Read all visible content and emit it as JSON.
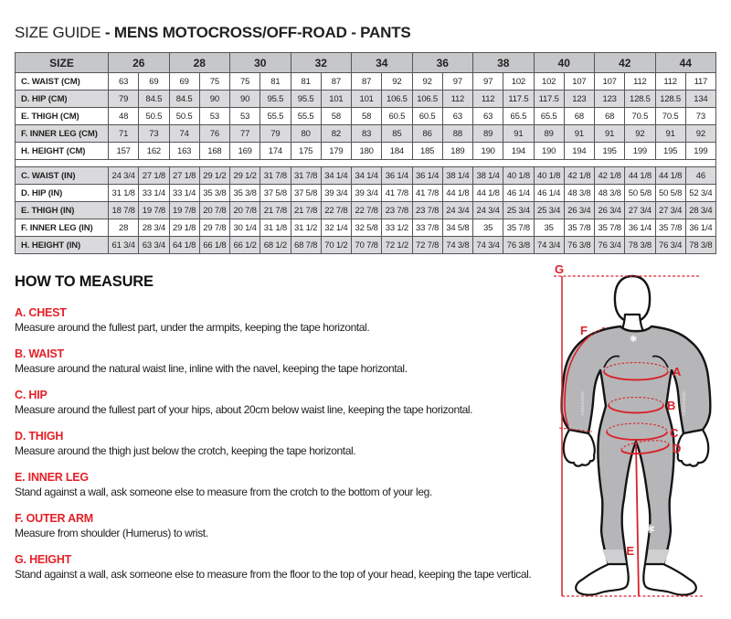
{
  "header": {
    "title_prefix": "SIZE GUIDE",
    "title_bold": " - MENS MOTOCROSS/OFF-ROAD - PANTS"
  },
  "size_table": {
    "corner_label": "SIZE",
    "sizes": [
      "26",
      "28",
      "30",
      "32",
      "34",
      "36",
      "38",
      "40",
      "42",
      "44"
    ],
    "separator_after": 5,
    "rows": [
      {
        "label": "C. WAIST (CM)",
        "values": [
          "63",
          "69",
          "69",
          "75",
          "75",
          "81",
          "81",
          "87",
          "87",
          "92",
          "92",
          "97",
          "97",
          "102",
          "102",
          "107",
          "107",
          "112",
          "112",
          "117"
        ]
      },
      {
        "label": "D. HIP (CM)",
        "values": [
          "79",
          "84.5",
          "84.5",
          "90",
          "90",
          "95.5",
          "95.5",
          "101",
          "101",
          "106.5",
          "106.5",
          "112",
          "112",
          "117.5",
          "117.5",
          "123",
          "123",
          "128.5",
          "128.5",
          "134"
        ]
      },
      {
        "label": "E. THIGH (CM)",
        "values": [
          "48",
          "50.5",
          "50.5",
          "53",
          "53",
          "55.5",
          "55.5",
          "58",
          "58",
          "60.5",
          "60.5",
          "63",
          "63",
          "65.5",
          "65.5",
          "68",
          "68",
          "70.5",
          "70.5",
          "73"
        ]
      },
      {
        "label": "F. INNER LEG (CM)",
        "values": [
          "71",
          "73",
          "74",
          "76",
          "77",
          "79",
          "80",
          "82",
          "83",
          "85",
          "86",
          "88",
          "89",
          "91",
          "89",
          "91",
          "91",
          "92",
          "91",
          "92"
        ]
      },
      {
        "label": "H. HEIGHT (CM)",
        "values": [
          "157",
          "162",
          "163",
          "168",
          "169",
          "174",
          "175",
          "179",
          "180",
          "184",
          "185",
          "189",
          "190",
          "194",
          "190",
          "194",
          "195",
          "199",
          "195",
          "199"
        ]
      },
      {
        "label": "C. WAIST (IN)",
        "values": [
          "24 3/4",
          "27 1/8",
          "27 1/8",
          "29 1/2",
          "29 1/2",
          "31 7/8",
          "31 7/8",
          "34 1/4",
          "34 1/4",
          "36 1/4",
          "36 1/4",
          "38 1/4",
          "38 1/4",
          "40 1/8",
          "40 1/8",
          "42 1/8",
          "42 1/8",
          "44 1/8",
          "44 1/8",
          "46"
        ]
      },
      {
        "label": "D. HIP (IN)",
        "values": [
          "31 1/8",
          "33 1/4",
          "33 1/4",
          "35 3/8",
          "35 3/8",
          "37 5/8",
          "37 5/8",
          "39 3/4",
          "39 3/4",
          "41 7/8",
          "41 7/8",
          "44 1/8",
          "44 1/8",
          "46 1/4",
          "46 1/4",
          "48 3/8",
          "48 3/8",
          "50 5/8",
          "50 5/8",
          "52 3/4"
        ]
      },
      {
        "label": "E. THIGH (IN)",
        "values": [
          "18 7/8",
          "19 7/8",
          "19 7/8",
          "20 7/8",
          "20 7/8",
          "21 7/8",
          "21 7/8",
          "22 7/8",
          "22 7/8",
          "23 7/8",
          "23 7/8",
          "24 3/4",
          "24 3/4",
          "25 3/4",
          "25 3/4",
          "26 3/4",
          "26 3/4",
          "27 3/4",
          "27 3/4",
          "28 3/4"
        ]
      },
      {
        "label": "F. INNER LEG (IN)",
        "values": [
          "28",
          "28 3/4",
          "29 1/8",
          "29 7/8",
          "30 1/4",
          "31 1/8",
          "31 1/2",
          "32 1/4",
          "32 5/8",
          "33 1/2",
          "33 7/8",
          "34 5/8",
          "35",
          "35 7/8",
          "35",
          "35 7/8",
          "35 7/8",
          "36 1/4",
          "35 7/8",
          "36 1/4"
        ]
      },
      {
        "label": "H. HEIGHT (IN)",
        "values": [
          "61 3/4",
          "63 3/4",
          "64 1/8",
          "66 1/8",
          "66 1/2",
          "68 1/2",
          "68 7/8",
          "70 1/2",
          "70 7/8",
          "72 1/2",
          "72 7/8",
          "74 3/8",
          "74 3/4",
          "76 3/8",
          "74 3/4",
          "76 3/8",
          "76 3/4",
          "78 3/8",
          "76 3/4",
          "78 3/8"
        ]
      }
    ]
  },
  "how_to_measure": {
    "heading": "HOW TO MEASURE",
    "items": [
      {
        "label": "A. CHEST",
        "text": "Measure around the fullest part, under the armpits, keeping the tape horizontal."
      },
      {
        "label": "B. WAIST",
        "text": "Measure around the natural waist line, inline with the navel, keeping the tape horizontal."
      },
      {
        "label": "C. HIP",
        "text": "Measure around the fullest part of your hips, about 20cm below waist line, keeping the tape horizontal."
      },
      {
        "label": "D. THIGH",
        "text": "Measure around the thigh just below the crotch, keeping the tape horizontal."
      },
      {
        "label": "E. INNER LEG",
        "text": "Stand against a wall, ask someone else to measure from the crotch to the bottom of your leg."
      },
      {
        "label": "F. OUTER ARM",
        "text": "Measure from shoulder (Humerus) to wrist."
      },
      {
        "label": "G. HEIGHT",
        "text": "Stand against a wall, ask someone else to measure from the floor to the top of your head, keeping the tape vertical."
      }
    ]
  },
  "diagram": {
    "letters": [
      "A",
      "B",
      "C",
      "D",
      "E",
      "F",
      "G"
    ],
    "logo_glyph": "✱"
  },
  "colors": {
    "accent_red": "#e32128",
    "diagram_red": "#d9222a",
    "table_header_gray": "#c6c7c9",
    "table_alt_row_gray": "#dadadc",
    "table_border": "#55555a",
    "suit_gray": "#b6b6b8",
    "cuff_gray": "#cfcfd1",
    "outline_black": "#141414",
    "text_black": "#231f20"
  }
}
